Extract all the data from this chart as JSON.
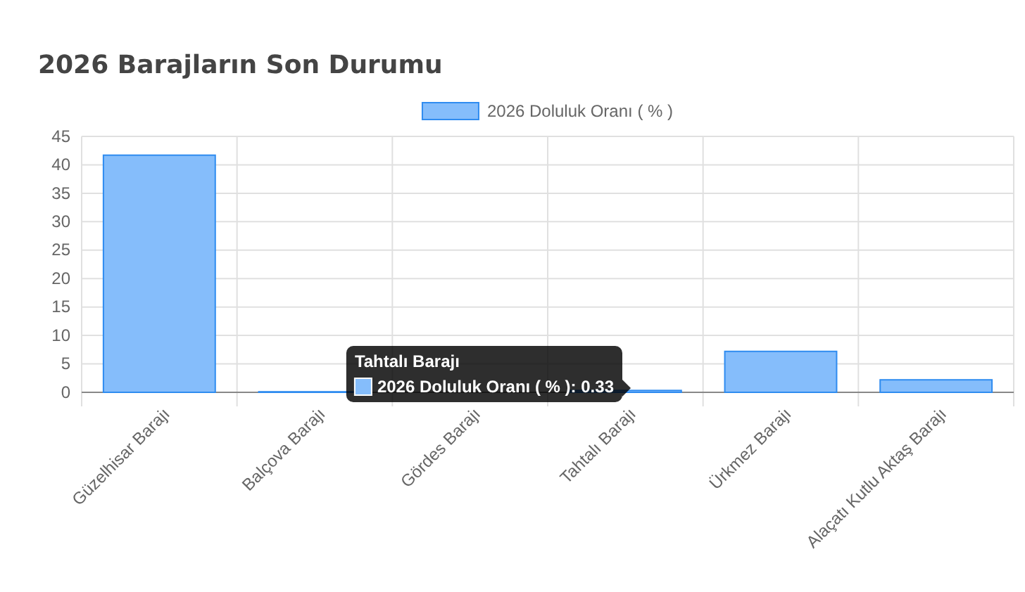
{
  "chart_data": {
    "type": "bar",
    "title": "2026 Barajların Son Durumu",
    "categories": [
      "Güzelhisar Barajı",
      "Balçova Barajı",
      "Gördes Barajı",
      "Tahtalı Barajı",
      "Ürkmez Barajı",
      "Alaçatı Kutlu Aktaş Barajı"
    ],
    "series": [
      {
        "name": "2026 Doluluk Oranı ( % )",
        "color": "#85bdfb",
        "values": [
          41.7,
          0.1,
          null,
          0.33,
          7.2,
          2.2
        ]
      }
    ],
    "ylim": [
      0,
      45
    ],
    "yticks": [
      0,
      5,
      10,
      15,
      20,
      25,
      30,
      35,
      40,
      45
    ],
    "grid": true,
    "legend": "top",
    "annotations": [
      "Tahtalı Barajı",
      "2026 Doluluk Oranı ( % ): 0.33"
    ]
  }
}
